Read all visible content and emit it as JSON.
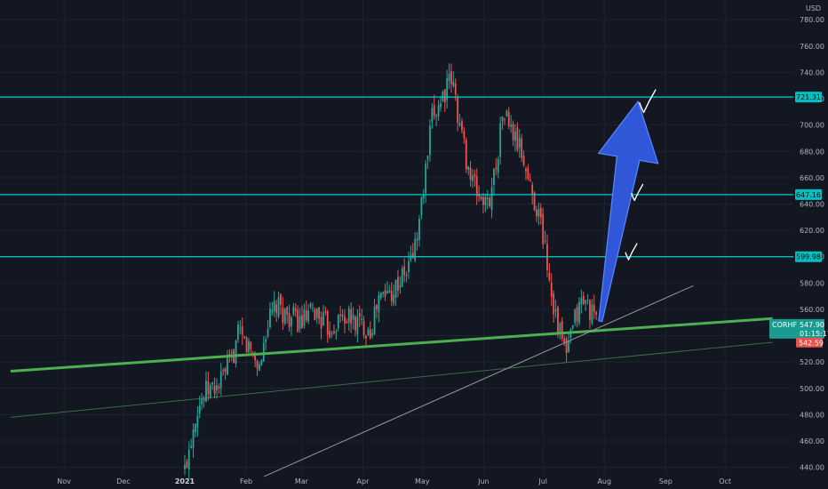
{
  "currency_label": "USD",
  "colors": {
    "background": "#131722",
    "grid": "#1f2330",
    "up": "#26a69a",
    "down": "#ef5350",
    "level_line": "#00d0d0",
    "level_badge_bg": "#00c0c0",
    "support_line": "#4caf50",
    "thin_line": "#3d6b45",
    "diagonal_line": "#9598a1",
    "arrow_fill": "#2f57d8",
    "arrow_stroke": "#5b87ff",
    "ticker_badge_bg": "#1b9b8f",
    "low_badge_bg": "#e8504e"
  },
  "chart_data": {
    "type": "candlestick",
    "currency": "USD",
    "x_axis_labels": [
      "Nov",
      "Dec",
      "2021",
      "Feb",
      "Mar",
      "Apr",
      "May",
      "Jun",
      "Jul",
      "Aug",
      "Sep",
      "Oct"
    ],
    "y_ticks": [
      440,
      460,
      480,
      500,
      520,
      540,
      560,
      580,
      600,
      620,
      640,
      660,
      680,
      700,
      720,
      740,
      760,
      780
    ],
    "ylim": [
      435,
      795
    ],
    "horizontal_levels": [
      {
        "value": 721.31,
        "label": "721.31"
      },
      {
        "value": 647.16,
        "label": "647.16"
      },
      {
        "value": 599.98,
        "label": "599.98"
      }
    ],
    "current_price": {
      "ticker": "CORHF",
      "value": "547.90",
      "countdown": "01:15:17"
    },
    "low_marker": "542.59",
    "price_path": [
      [
        "2021-01-01",
        438
      ],
      [
        "2021-01-07",
        485
      ],
      [
        "2021-01-12",
        498
      ],
      [
        "2021-01-18",
        502
      ],
      [
        "2021-01-25",
        523
      ],
      [
        "2021-01-28",
        540
      ],
      [
        "2021-02-03",
        530
      ],
      [
        "2021-02-08",
        515
      ],
      [
        "2021-02-11",
        545
      ],
      [
        "2021-02-16",
        562
      ],
      [
        "2021-02-22",
        555
      ],
      [
        "2021-03-01",
        550
      ],
      [
        "2021-03-08",
        558
      ],
      [
        "2021-03-15",
        545
      ],
      [
        "2021-03-22",
        555
      ],
      [
        "2021-03-29",
        550
      ],
      [
        "2021-04-05",
        545
      ],
      [
        "2021-04-09",
        568
      ],
      [
        "2021-04-16",
        575
      ],
      [
        "2021-04-23",
        588
      ],
      [
        "2021-04-28",
        612
      ],
      [
        "2021-05-02",
        655
      ],
      [
        "2021-05-06",
        705
      ],
      [
        "2021-05-11",
        722
      ],
      [
        "2021-05-16",
        735
      ],
      [
        "2021-05-20",
        700
      ],
      [
        "2021-05-25",
        662
      ],
      [
        "2021-05-29",
        648
      ],
      [
        "2021-06-03",
        638
      ],
      [
        "2021-06-07",
        668
      ],
      [
        "2021-06-11",
        712
      ],
      [
        "2021-06-15",
        695
      ],
      [
        "2021-06-20",
        680
      ],
      [
        "2021-06-25",
        650
      ],
      [
        "2021-06-29",
        632
      ],
      [
        "2021-07-02",
        608
      ],
      [
        "2021-07-05",
        575
      ],
      [
        "2021-07-09",
        545
      ],
      [
        "2021-07-13",
        525
      ],
      [
        "2021-07-17",
        552
      ],
      [
        "2021-07-21",
        568
      ],
      [
        "2021-07-25",
        560
      ],
      [
        "2021-07-28",
        548
      ]
    ],
    "annotations": {
      "support_line": {
        "from": [
          "2020-10-05",
          513
        ],
        "to": [
          "2021-10-25",
          553
        ]
      },
      "thin_support_line": {
        "from": [
          "2020-10-05",
          478
        ],
        "to": [
          "2021-10-25",
          535
        ]
      },
      "diagonal_line": {
        "from": [
          "2021-02-10",
          433
        ],
        "to": [
          "2021-09-15",
          578
        ]
      },
      "arrow": {
        "from": [
          "2021-07-30",
          551
        ],
        "to": [
          "2021-08-18",
          718
        ]
      },
      "check_marks": [
        {
          "date": "2021-08-22",
          "value": 717
        },
        {
          "date": "2021-08-17",
          "value": 648
        },
        {
          "date": "2021-08-14",
          "value": 603
        }
      ]
    },
    "grid": true
  }
}
